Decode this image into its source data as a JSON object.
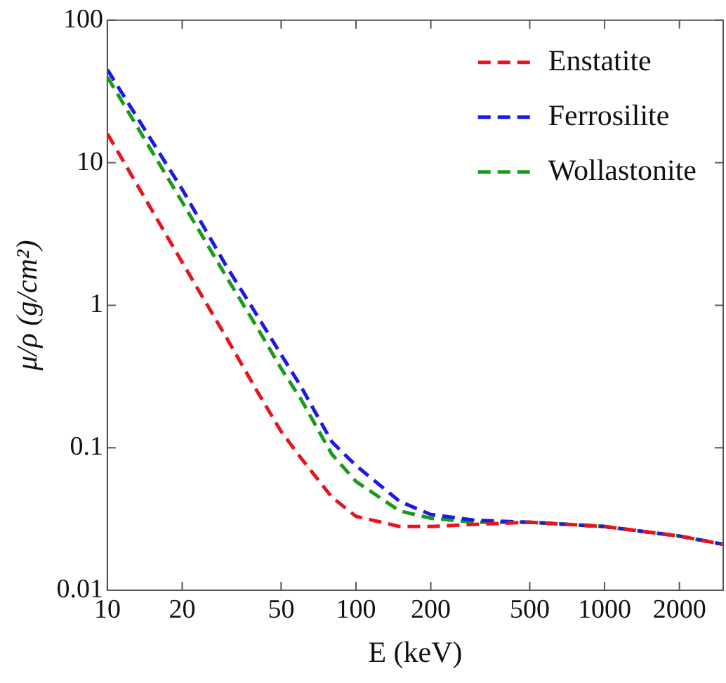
{
  "chart_data": {
    "type": "line",
    "xlabel": "E (keV)",
    "ylabel": "μ/ρ (g/cm²)",
    "log": "xy",
    "xlim": [
      10,
      3000
    ],
    "ylim": [
      0.01,
      100
    ],
    "xticks": [
      10,
      20,
      50,
      100,
      200,
      500,
      1000,
      2000
    ],
    "yticks": [
      0.01,
      0.1,
      1,
      10,
      100
    ],
    "grid": false,
    "legend": "top right",
    "marker": "none",
    "line_style": "dashed",
    "x": [
      10,
      20,
      30,
      40,
      50,
      60,
      80,
      100,
      150,
      200,
      300,
      500,
      1000,
      2000,
      3000
    ],
    "series": [
      {
        "name": "Enstatite",
        "color": "#e8141b",
        "values": [
          16,
          2,
          0.6,
          0.25,
          0.13,
          0.085,
          0.045,
          0.033,
          0.028,
          0.028,
          0.029,
          0.03,
          0.028,
          0.024,
          0.021
        ]
      },
      {
        "name": "Ferrosilite",
        "color": "#1a1ae6",
        "values": [
          45,
          6.5,
          1.9,
          0.85,
          0.45,
          0.27,
          0.11,
          0.075,
          0.042,
          0.034,
          0.031,
          0.03,
          0.028,
          0.024,
          0.021
        ]
      },
      {
        "name": "Wollastonite",
        "color": "#1a9a1a",
        "values": [
          40,
          5.3,
          1.6,
          0.7,
          0.36,
          0.22,
          0.09,
          0.058,
          0.036,
          0.032,
          0.03,
          0.03,
          0.028,
          0.024,
          0.021
        ]
      }
    ]
  }
}
